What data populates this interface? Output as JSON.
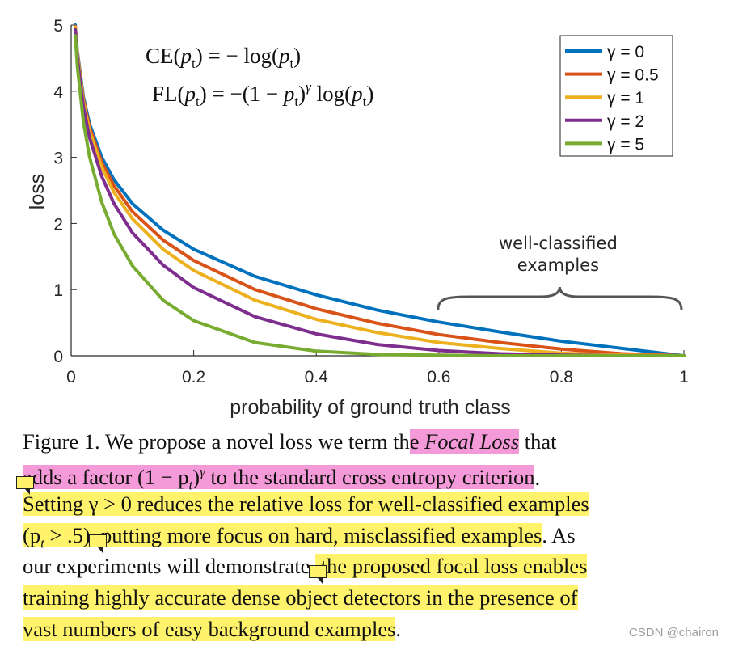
{
  "chart_data": {
    "type": "line",
    "xlabel": "probability of ground truth class",
    "ylabel": "loss",
    "xlim": [
      0,
      1
    ],
    "ylim": [
      0,
      5
    ],
    "xticks": [
      "0",
      "0.2",
      "0.4",
      "0.6",
      "0.8",
      "1"
    ],
    "yticks": [
      "0",
      "1",
      "2",
      "3",
      "4",
      "5"
    ],
    "grid": false,
    "legend_position": "top-right",
    "formula_ce": "CE(pt) = − log(pt)",
    "formula_fl": "FL(pt) = −(1 − pt)γ log(pt)",
    "annotation": [
      "well-classified",
      "examples"
    ],
    "annotation_range": [
      0.6,
      1.0
    ],
    "x": [
      0.0067,
      0.01,
      0.02,
      0.03,
      0.05,
      0.07,
      0.1,
      0.15,
      0.2,
      0.3,
      0.4,
      0.5,
      0.6,
      0.7,
      0.8,
      0.9,
      1.0
    ],
    "series": [
      {
        "name": "γ = 0",
        "gamma": 0,
        "color": "#0072BD",
        "values": [
          5.0,
          4.61,
          3.91,
          3.51,
          3.0,
          2.66,
          2.3,
          1.9,
          1.61,
          1.2,
          0.92,
          0.69,
          0.51,
          0.36,
          0.22,
          0.11,
          0.0
        ]
      },
      {
        "name": "γ = 0.5",
        "gamma": 0.5,
        "color": "#D95319",
        "values": [
          4.98,
          4.58,
          3.87,
          3.46,
          2.92,
          2.57,
          2.18,
          1.75,
          1.44,
          1.0,
          0.71,
          0.49,
          0.32,
          0.2,
          0.1,
          0.03,
          0.0
        ]
      },
      {
        "name": "γ = 1",
        "gamma": 1,
        "color": "#EDB120",
        "values": [
          4.97,
          4.56,
          3.83,
          3.4,
          2.85,
          2.47,
          2.07,
          1.61,
          1.29,
          0.84,
          0.55,
          0.35,
          0.2,
          0.11,
          0.04,
          0.01,
          0.0
        ]
      },
      {
        "name": "γ = 2",
        "gamma": 2,
        "color": "#7E2F8E",
        "values": [
          4.93,
          4.51,
          3.76,
          3.3,
          2.71,
          2.3,
          1.86,
          1.37,
          1.03,
          0.59,
          0.33,
          0.17,
          0.08,
          0.03,
          0.01,
          0.0,
          0.0
        ]
      },
      {
        "name": "γ = 5",
        "gamma": 5,
        "color": "#77AC30",
        "values": [
          4.84,
          4.38,
          3.53,
          3.01,
          2.32,
          1.84,
          1.36,
          0.84,
          0.53,
          0.2,
          0.07,
          0.02,
          0.01,
          0.0,
          0.0,
          0.0,
          0.0
        ]
      }
    ]
  },
  "caption": {
    "line1_a": "Figure 1. We propose a novel loss we term th",
    "line1_b": "e ",
    "line1_c": "Focal Loss",
    "line1_d": " that",
    "line2_a": "adds a factor (1 − p",
    "line2_a_sub": "t",
    "line2_a_end": ")",
    "line2_a_sup": "γ",
    "line2_b": " to the standard cross entropy criterion",
    "line2_c": ".",
    "line3": "Setting γ > 0 reduces the relative loss for well-classified examples",
    "line4_a": "(p",
    "line4_a_sub": "t",
    "line4_a_end": " > .5),",
    "line4_b": " putting more focus on hard, misclassified examples",
    "line4_c": ". As",
    "line5_a": "our experiments will demonstrate,",
    "line5_b": " the proposed focal loss enables",
    "line6": "training highly accurate dense object detectors in the presence of",
    "line7_a": "vast numbers of easy background examples",
    "line7_b": "."
  },
  "watermark": "CSDN @chairon",
  "colors": {
    "highlight_pink": "#f59ad8",
    "highlight_yellow": "#fff36b"
  }
}
